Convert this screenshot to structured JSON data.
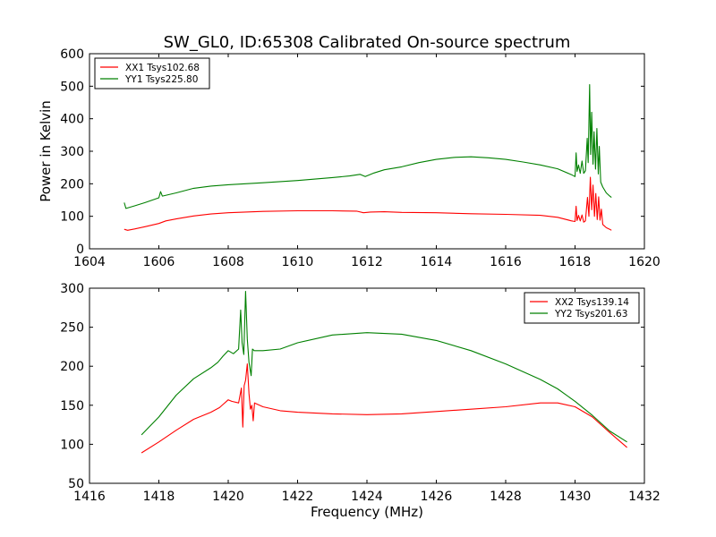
{
  "figure": {
    "title": "SW_GL0, ID:65308 Calibrated On-source spectrum"
  },
  "chart_data": [
    {
      "type": "line",
      "xlabel": "",
      "ylabel": "Power in Kelvin",
      "xlim": [
        1604,
        1620
      ],
      "ylim": [
        0,
        600
      ],
      "xticks": [
        1604,
        1606,
        1608,
        1610,
        1612,
        1614,
        1616,
        1618,
        1620
      ],
      "yticks": [
        0,
        100,
        200,
        300,
        400,
        500,
        600
      ],
      "legend": "top-left",
      "grid": false,
      "series": [
        {
          "name": "XX1 Tsys102.68",
          "color": "#ff0000",
          "points": [
            [
              1605.0,
              60
            ],
            [
              1605.1,
              57
            ],
            [
              1605.3,
              61
            ],
            [
              1605.6,
              68
            ],
            [
              1606.0,
              78
            ],
            [
              1606.2,
              86
            ],
            [
              1606.5,
              92
            ],
            [
              1607.0,
              101
            ],
            [
              1607.5,
              107
            ],
            [
              1608.0,
              111
            ],
            [
              1609.0,
              115
            ],
            [
              1610.0,
              117
            ],
            [
              1611.0,
              117
            ],
            [
              1611.7,
              116
            ],
            [
              1611.9,
              111
            ],
            [
              1612.1,
              113
            ],
            [
              1612.5,
              114
            ],
            [
              1613.0,
              112
            ],
            [
              1614.0,
              111
            ],
            [
              1615.0,
              108
            ],
            [
              1616.0,
              106
            ],
            [
              1617.0,
              103
            ],
            [
              1617.5,
              97
            ],
            [
              1617.9,
              86
            ],
            [
              1618.0,
              84
            ],
            [
              1618.03,
              131
            ],
            [
              1618.06,
              87
            ],
            [
              1618.1,
              103
            ],
            [
              1618.15,
              86
            ],
            [
              1618.2,
              104
            ],
            [
              1618.25,
              82
            ],
            [
              1618.3,
              86
            ],
            [
              1618.36,
              158
            ],
            [
              1618.4,
              100
            ],
            [
              1618.44,
              220
            ],
            [
              1618.48,
              120
            ],
            [
              1618.52,
              196
            ],
            [
              1618.56,
              100
            ],
            [
              1618.6,
              170
            ],
            [
              1618.64,
              90
            ],
            [
              1618.68,
              160
            ],
            [
              1618.72,
              88
            ],
            [
              1618.76,
              122
            ],
            [
              1618.8,
              75
            ],
            [
              1618.9,
              65
            ],
            [
              1619.0,
              60
            ],
            [
              1619.05,
              57
            ]
          ]
        },
        {
          "name": "YY1 Tsys225.80",
          "color": "#008000",
          "points": [
            [
              1605.0,
              142
            ],
            [
              1605.05,
              124
            ],
            [
              1605.3,
              132
            ],
            [
              1605.6,
              142
            ],
            [
              1606.0,
              157
            ],
            [
              1606.05,
              176
            ],
            [
              1606.1,
              162
            ],
            [
              1606.5,
              172
            ],
            [
              1607.0,
              186
            ],
            [
              1607.5,
              193
            ],
            [
              1608.0,
              197
            ],
            [
              1609.0,
              203
            ],
            [
              1610.0,
              210
            ],
            [
              1611.0,
              219
            ],
            [
              1611.5,
              224
            ],
            [
              1611.8,
              229
            ],
            [
              1611.95,
              222
            ],
            [
              1612.2,
              233
            ],
            [
              1612.5,
              243
            ],
            [
              1613.0,
              252
            ],
            [
              1613.5,
              265
            ],
            [
              1614.0,
              275
            ],
            [
              1614.5,
              281
            ],
            [
              1615.0,
              283
            ],
            [
              1615.5,
              280
            ],
            [
              1616.0,
              275
            ],
            [
              1616.5,
              267
            ],
            [
              1617.0,
              258
            ],
            [
              1617.5,
              246
            ],
            [
              1617.9,
              228
            ],
            [
              1618.0,
              222
            ],
            [
              1618.03,
              295
            ],
            [
              1618.06,
              238
            ],
            [
              1618.1,
              258
            ],
            [
              1618.15,
              232
            ],
            [
              1618.2,
              270
            ],
            [
              1618.25,
              232
            ],
            [
              1618.3,
              240
            ],
            [
              1618.35,
              340
            ],
            [
              1618.38,
              265
            ],
            [
              1618.42,
              505
            ],
            [
              1618.45,
              290
            ],
            [
              1618.48,
              420
            ],
            [
              1618.52,
              260
            ],
            [
              1618.55,
              360
            ],
            [
              1618.59,
              245
            ],
            [
              1618.63,
              370
            ],
            [
              1618.67,
              230
            ],
            [
              1618.7,
              315
            ],
            [
              1618.74,
              205
            ],
            [
              1618.8,
              190
            ],
            [
              1618.9,
              172
            ],
            [
              1619.0,
              162
            ],
            [
              1619.05,
              158
            ]
          ]
        }
      ]
    },
    {
      "type": "line",
      "xlabel": "Frequency (MHz)",
      "ylabel": "",
      "xlim": [
        1416,
        1432
      ],
      "ylim": [
        50,
        300
      ],
      "xticks": [
        1416,
        1418,
        1420,
        1422,
        1424,
        1426,
        1428,
        1430,
        1432
      ],
      "yticks": [
        50,
        100,
        150,
        200,
        250,
        300
      ],
      "legend": "top-right",
      "grid": false,
      "series": [
        {
          "name": "XX2 Tsys139.14",
          "color": "#ff0000",
          "points": [
            [
              1417.5,
              89
            ],
            [
              1418.0,
              103
            ],
            [
              1418.5,
              118
            ],
            [
              1419.0,
              132
            ],
            [
              1419.5,
              141
            ],
            [
              1419.75,
              147
            ],
            [
              1419.85,
              151
            ],
            [
              1420.0,
              157
            ],
            [
              1420.1,
              155
            ],
            [
              1420.3,
              153
            ],
            [
              1420.38,
              172
            ],
            [
              1420.42,
              122
            ],
            [
              1420.46,
              175
            ],
            [
              1420.5,
              182
            ],
            [
              1420.55,
              203
            ],
            [
              1420.6,
              165
            ],
            [
              1420.64,
              145
            ],
            [
              1420.68,
              150
            ],
            [
              1420.72,
              130
            ],
            [
              1420.76,
              153
            ],
            [
              1421.0,
              148
            ],
            [
              1421.5,
              143
            ],
            [
              1422.0,
              141
            ],
            [
              1423.0,
              139
            ],
            [
              1424.0,
              138
            ],
            [
              1425.0,
              139
            ],
            [
              1426.0,
              142
            ],
            [
              1427.0,
              145
            ],
            [
              1428.0,
              148
            ],
            [
              1429.0,
              153
            ],
            [
              1429.5,
              153
            ],
            [
              1430.0,
              148
            ],
            [
              1430.5,
              135
            ],
            [
              1431.0,
              115
            ],
            [
              1431.5,
              96
            ]
          ]
        },
        {
          "name": "YY2 Tsys201.63",
          "color": "#008000",
          "points": [
            [
              1417.5,
              112
            ],
            [
              1418.0,
              135
            ],
            [
              1418.5,
              163
            ],
            [
              1419.0,
              184
            ],
            [
              1419.5,
              198
            ],
            [
              1419.7,
              205
            ],
            [
              1419.85,
              213
            ],
            [
              1420.0,
              220
            ],
            [
              1420.15,
              216
            ],
            [
              1420.3,
              222
            ],
            [
              1420.36,
              272
            ],
            [
              1420.4,
              230
            ],
            [
              1420.45,
              215
            ],
            [
              1420.5,
              296
            ],
            [
              1420.55,
              235
            ],
            [
              1420.6,
              205
            ],
            [
              1420.66,
              188
            ],
            [
              1420.7,
              222
            ],
            [
              1420.75,
              220
            ],
            [
              1421.0,
              220
            ],
            [
              1421.5,
              222
            ],
            [
              1422.0,
              230
            ],
            [
              1423.0,
              240
            ],
            [
              1424.0,
              243
            ],
            [
              1425.0,
              241
            ],
            [
              1426.0,
              233
            ],
            [
              1427.0,
              220
            ],
            [
              1428.0,
              203
            ],
            [
              1429.0,
              183
            ],
            [
              1429.5,
              171
            ],
            [
              1430.0,
              155
            ],
            [
              1430.5,
              137
            ],
            [
              1431.0,
              117
            ],
            [
              1431.5,
              103
            ]
          ]
        }
      ]
    }
  ]
}
